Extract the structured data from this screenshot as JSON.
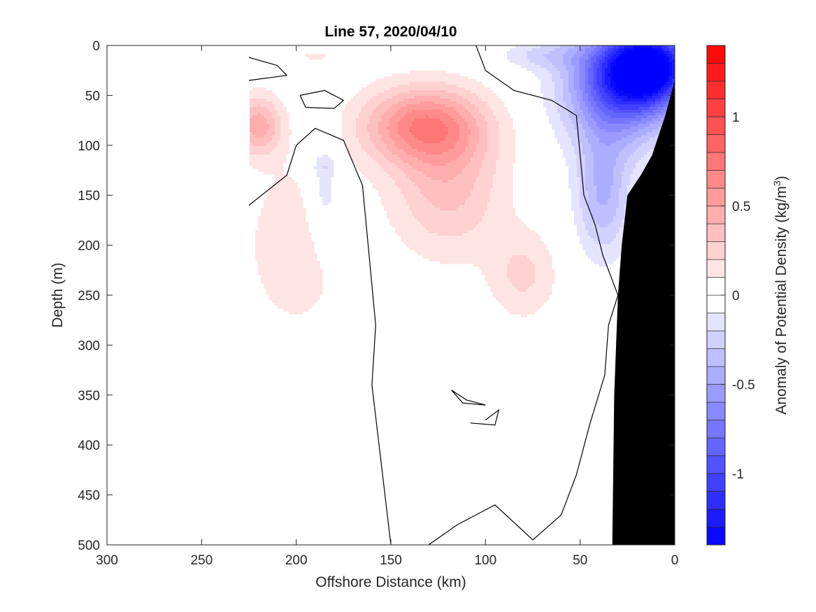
{
  "chart_data": {
    "type": "contourf",
    "title": "Line 57, 2020/04/10",
    "xlabel": "Offshore Distance (km)",
    "ylabel": "Depth (m)",
    "x_axis_reversed": true,
    "y_axis_reversed": true,
    "xlim": [
      0,
      300
    ],
    "ylim": [
      0,
      500
    ],
    "xticks": [
      300,
      250,
      200,
      150,
      100,
      50,
      0
    ],
    "yticks": [
      0,
      50,
      100,
      150,
      200,
      250,
      300,
      350,
      400,
      450,
      500
    ],
    "colorbar": {
      "label": "Anomaly of Potential Density (kg/m",
      "label_superscript": "3",
      "label_suffix": ")",
      "range": [
        -1.4,
        1.4
      ],
      "levels": [
        -1.4,
        -1.3,
        -1.2,
        -1.1,
        -1.0,
        -0.9,
        -0.8,
        -0.7,
        -0.6,
        -0.5,
        -0.4,
        -0.3,
        -0.2,
        -0.1,
        0,
        0.1,
        0.2,
        0.3,
        0.4,
        0.5,
        0.6,
        0.7,
        0.8,
        0.9,
        1.0,
        1.1,
        1.2,
        1.3,
        1.4
      ],
      "ticks": [
        -1,
        -0.5,
        0,
        0.5,
        1
      ],
      "tick_labels": [
        "-1",
        "-0.5",
        "0",
        "0.5",
        "1"
      ],
      "colormap": "blue-white-red",
      "negative_color": "#0000ff",
      "positive_color": "#ff0000"
    },
    "data_extent_x": [
      0,
      225
    ],
    "bathymetry_color": "#000000",
    "bathymetry": [
      [
        0,
        35
      ],
      [
        5,
        70
      ],
      [
        12,
        110
      ],
      [
        18,
        130
      ],
      [
        25,
        150
      ],
      [
        28,
        200
      ],
      [
        30,
        250
      ],
      [
        32,
        350
      ],
      [
        33,
        500
      ],
      [
        0,
        500
      ]
    ],
    "anomaly_features": [
      {
        "kind": "positive",
        "center": [
          135,
          80
        ],
        "peak_anomaly": 0.6
      },
      {
        "kind": "positive",
        "center": [
          218,
          82
        ],
        "peak_anomaly": 0.45
      },
      {
        "kind": "negative",
        "center": [
          20,
          20
        ],
        "peak_anomaly": -1.2
      },
      {
        "kind": "negative",
        "center": [
          185,
          170
        ],
        "peak_anomaly": -0.15
      }
    ],
    "zero_contours": [
      [
        [
          105,
          0
        ],
        [
          100,
          25
        ],
        [
          85,
          45
        ],
        [
          65,
          55
        ],
        [
          52,
          70
        ],
        [
          50,
          110
        ],
        [
          48,
          150
        ],
        [
          42,
          180
        ],
        [
          38,
          210
        ],
        [
          30,
          250
        ],
        [
          35,
          280
        ],
        [
          37,
          330
        ],
        [
          45,
          380
        ],
        [
          52,
          430
        ],
        [
          60,
          470
        ],
        [
          75,
          495
        ],
        [
          95,
          460
        ],
        [
          115,
          480
        ],
        [
          130,
          500
        ]
      ],
      [
        [
          225,
          160
        ],
        [
          205,
          130
        ],
        [
          200,
          100
        ],
        [
          190,
          83
        ],
        [
          175,
          95
        ],
        [
          165,
          140
        ],
        [
          162,
          200
        ],
        [
          158,
          280
        ],
        [
          160,
          340
        ],
        [
          155,
          420
        ],
        [
          150,
          500
        ]
      ],
      [
        [
          225,
          12
        ],
        [
          210,
          20
        ],
        [
          205,
          30
        ],
        [
          225,
          35
        ]
      ],
      [
        [
          198,
          50
        ],
        [
          185,
          45
        ],
        [
          175,
          55
        ],
        [
          180,
          63
        ],
        [
          195,
          62
        ],
        [
          198,
          50
        ]
      ],
      [
        [
          118,
          345
        ],
        [
          110,
          355
        ],
        [
          100,
          360
        ],
        [
          112,
          358
        ],
        [
          118,
          345
        ]
      ],
      [
        [
          108,
          378
        ],
        [
          95,
          380
        ],
        [
          93,
          365
        ],
        [
          100,
          375
        ]
      ]
    ]
  }
}
